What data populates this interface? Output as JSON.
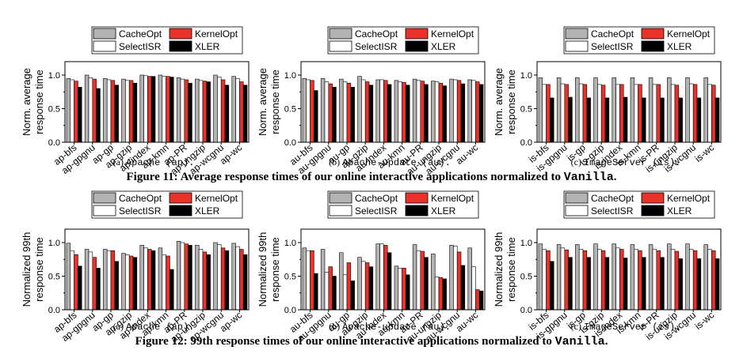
{
  "legend": {
    "entries": [
      {
        "name": "CacheOpt",
        "color": "#b3b3b3"
      },
      {
        "name": "KernelOpt",
        "color": "#e8322a"
      },
      {
        "name": "SelectISR",
        "color": "#ffffff"
      },
      {
        "name": "XLER",
        "color": "#000000"
      }
    ]
  },
  "figure11": {
    "label": "Figure 11:",
    "text": "Average response times of our online interactive applications normalized to",
    "mono": "Vanilla",
    "end": "."
  },
  "figure12": {
    "label": "Figure 12:",
    "text": "99th response times of our online interactive applications normalized to",
    "mono": "Vanilla",
    "end": "."
  },
  "chart_data": [
    {
      "type": "bar",
      "id": "fig11a",
      "subcaption_letter": "(a)",
      "subcaption_name": "Apache (ap).",
      "ylabel": [
        "Norm. average",
        "response time"
      ],
      "ylim": [
        0,
        1.2
      ],
      "yticks": [
        "0.0",
        "0.5",
        "1.0"
      ],
      "categories": [
        "ap-bfs",
        "ap-gpgnu",
        "ap-gp",
        "ap-gzip",
        "ap-index",
        "ap-kmn",
        "ap-PR",
        "ap-ungzip",
        "ap-wcgnu",
        "ap-wc"
      ],
      "series": [
        {
          "name": "CacheOpt",
          "values": [
            0.95,
            1.0,
            0.95,
            0.94,
            1.0,
            1.0,
            0.96,
            0.94,
            1.0,
            0.98
          ]
        },
        {
          "name": "SelectISR",
          "values": [
            0.93,
            0.96,
            0.93,
            0.92,
            0.99,
            0.98,
            0.94,
            0.92,
            0.97,
            0.95
          ]
        },
        {
          "name": "KernelOpt",
          "values": [
            0.91,
            0.94,
            0.92,
            0.92,
            0.98,
            0.98,
            0.93,
            0.91,
            0.93,
            0.9
          ]
        },
        {
          "name": "XLER",
          "values": [
            0.82,
            0.8,
            0.85,
            0.88,
            0.98,
            0.97,
            0.88,
            0.9,
            0.85,
            0.85
          ]
        }
      ]
    },
    {
      "type": "bar",
      "id": "fig11b",
      "subcaption_letter": "(b)",
      "subcaption_name": "Apache-update (au).",
      "ylabel": [
        "Norm. average",
        "response time"
      ],
      "ylim": [
        0,
        1.2
      ],
      "yticks": [
        "0.0",
        "0.5",
        "1.0"
      ],
      "categories": [
        "au-bfs",
        "au-gpgnu",
        "au-gp",
        "au-gzip",
        "au-index",
        "au-kmn",
        "au-PR",
        "au-ungzip",
        "au-wcgnu",
        "au-wc"
      ],
      "series": [
        {
          "name": "CacheOpt",
          "values": [
            0.95,
            0.95,
            0.94,
            0.98,
            0.93,
            0.92,
            0.94,
            0.91,
            0.94,
            0.93
          ]
        },
        {
          "name": "SelectISR",
          "values": [
            0.93,
            0.9,
            0.9,
            0.93,
            0.93,
            0.9,
            0.92,
            0.9,
            0.93,
            0.92
          ]
        },
        {
          "name": "KernelOpt",
          "values": [
            0.92,
            0.87,
            0.88,
            0.9,
            0.92,
            0.89,
            0.91,
            0.88,
            0.92,
            0.9
          ]
        },
        {
          "name": "XLER",
          "values": [
            0.77,
            0.82,
            0.82,
            0.85,
            0.86,
            0.85,
            0.86,
            0.84,
            0.87,
            0.86
          ]
        }
      ]
    },
    {
      "type": "bar",
      "id": "fig11c",
      "subcaption_letter": "(c)",
      "subcaption_name": "ImageServer (is).",
      "ylabel": [
        "Norm. average",
        "response time"
      ],
      "ylim": [
        0,
        1.2
      ],
      "yticks": [
        "0.0",
        "0.5",
        "1.0"
      ],
      "categories": [
        "is-bfs",
        "is-gpgnu",
        "is-gp",
        "is-gzip",
        "is-index",
        "is-kmn",
        "is-PR",
        "is-ungzip",
        "is-wcgnu",
        "is-wc"
      ],
      "series": [
        {
          "name": "CacheOpt",
          "values": [
            0.96,
            0.96,
            0.96,
            0.96,
            0.96,
            0.96,
            0.96,
            0.96,
            0.96,
            0.96
          ]
        },
        {
          "name": "SelectISR",
          "values": [
            0.86,
            0.87,
            0.87,
            0.86,
            0.86,
            0.86,
            0.86,
            0.86,
            0.87,
            0.86
          ]
        },
        {
          "name": "KernelOpt",
          "values": [
            0.86,
            0.86,
            0.86,
            0.85,
            0.86,
            0.86,
            0.86,
            0.85,
            0.86,
            0.85
          ]
        },
        {
          "name": "XLER",
          "values": [
            0.66,
            0.67,
            0.66,
            0.66,
            0.67,
            0.66,
            0.66,
            0.66,
            0.66,
            0.66
          ]
        }
      ]
    },
    {
      "type": "bar",
      "id": "fig12a",
      "subcaption_letter": "(a)",
      "subcaption_name": "Apache (ap).",
      "ylabel": [
        "Normalized 99th",
        "response time"
      ],
      "ylim": [
        0,
        1.2
      ],
      "yticks": [
        "0.0",
        "0.5",
        "1.0"
      ],
      "categories": [
        "ap-bfs",
        "ap-gpgnu",
        "ap-gp",
        "ap-gzip",
        "ap-index",
        "ap-kmn",
        "ap-PR",
        "ap-ungzip",
        "ap-wcgnu",
        "ap-wc"
      ],
      "series": [
        {
          "name": "CacheOpt",
          "values": [
            0.99,
            0.9,
            0.9,
            0.84,
            0.96,
            0.92,
            1.02,
            0.96,
            1.0,
            0.99
          ]
        },
        {
          "name": "SelectISR",
          "values": [
            0.88,
            0.86,
            0.88,
            0.82,
            0.92,
            0.82,
            1.0,
            0.9,
            0.97,
            0.94
          ]
        },
        {
          "name": "KernelOpt",
          "values": [
            0.82,
            0.78,
            0.88,
            0.8,
            0.9,
            0.8,
            0.98,
            0.86,
            0.92,
            0.9
          ]
        },
        {
          "name": "XLER",
          "values": [
            0.65,
            0.62,
            0.72,
            0.78,
            0.88,
            0.6,
            0.96,
            0.82,
            0.88,
            0.82
          ]
        }
      ]
    },
    {
      "type": "bar",
      "id": "fig12b",
      "subcaption_letter": "(b)",
      "subcaption_name": "Apache-update (au).",
      "ylabel": [
        "Normalized 99th",
        "response time"
      ],
      "ylim": [
        0,
        1.2
      ],
      "yticks": [
        "0.0",
        "0.5",
        "1.0"
      ],
      "categories": [
        "au-bfs",
        "au-gpgnu",
        "au-gp",
        "au-gzip",
        "au-index",
        "au-kmn",
        "au-PR",
        "au-ungzip",
        "au-wcgnu",
        "au-wc"
      ],
      "series": [
        {
          "name": "CacheOpt",
          "values": [
            0.92,
            0.9,
            0.85,
            0.78,
            0.98,
            0.65,
            0.97,
            0.83,
            0.96,
            0.92
          ]
        },
        {
          "name": "SelectISR",
          "values": [
            0.88,
            0.56,
            0.52,
            0.72,
            0.98,
            0.62,
            0.88,
            0.49,
            0.95,
            0.64
          ]
        },
        {
          "name": "KernelOpt",
          "values": [
            0.88,
            0.64,
            0.7,
            0.7,
            0.96,
            0.62,
            0.87,
            0.48,
            0.86,
            0.3
          ]
        },
        {
          "name": "XLER",
          "values": [
            0.54,
            0.5,
            0.43,
            0.64,
            0.85,
            0.52,
            0.78,
            0.46,
            0.66,
            0.28
          ]
        }
      ]
    },
    {
      "type": "bar",
      "id": "fig12c",
      "subcaption_letter": "(c)",
      "subcaption_name": "ImageServer (is).",
      "ylabel": [
        "Normalized 99th",
        "response time"
      ],
      "ylim": [
        0,
        1.2
      ],
      "yticks": [
        "0.0",
        "0.5",
        "1.0"
      ],
      "categories": [
        "is-bfs",
        "is-gpgnu",
        "is-gp",
        "is-gzip",
        "is-index",
        "is-kmn",
        "is-PR",
        "is-ungzip",
        "is-wcgnu",
        "is-wc"
      ],
      "series": [
        {
          "name": "CacheOpt",
          "values": [
            0.98,
            0.97,
            0.97,
            0.98,
            0.98,
            0.97,
            0.97,
            0.98,
            0.98,
            0.97
          ]
        },
        {
          "name": "SelectISR",
          "values": [
            0.9,
            0.92,
            0.9,
            0.9,
            0.92,
            0.9,
            0.9,
            0.9,
            0.9,
            0.9
          ]
        },
        {
          "name": "KernelOpt",
          "values": [
            0.88,
            0.89,
            0.88,
            0.88,
            0.9,
            0.88,
            0.88,
            0.87,
            0.88,
            0.88
          ]
        },
        {
          "name": "XLER",
          "values": [
            0.72,
            0.78,
            0.78,
            0.78,
            0.77,
            0.78,
            0.78,
            0.76,
            0.76,
            0.76
          ]
        }
      ]
    }
  ]
}
